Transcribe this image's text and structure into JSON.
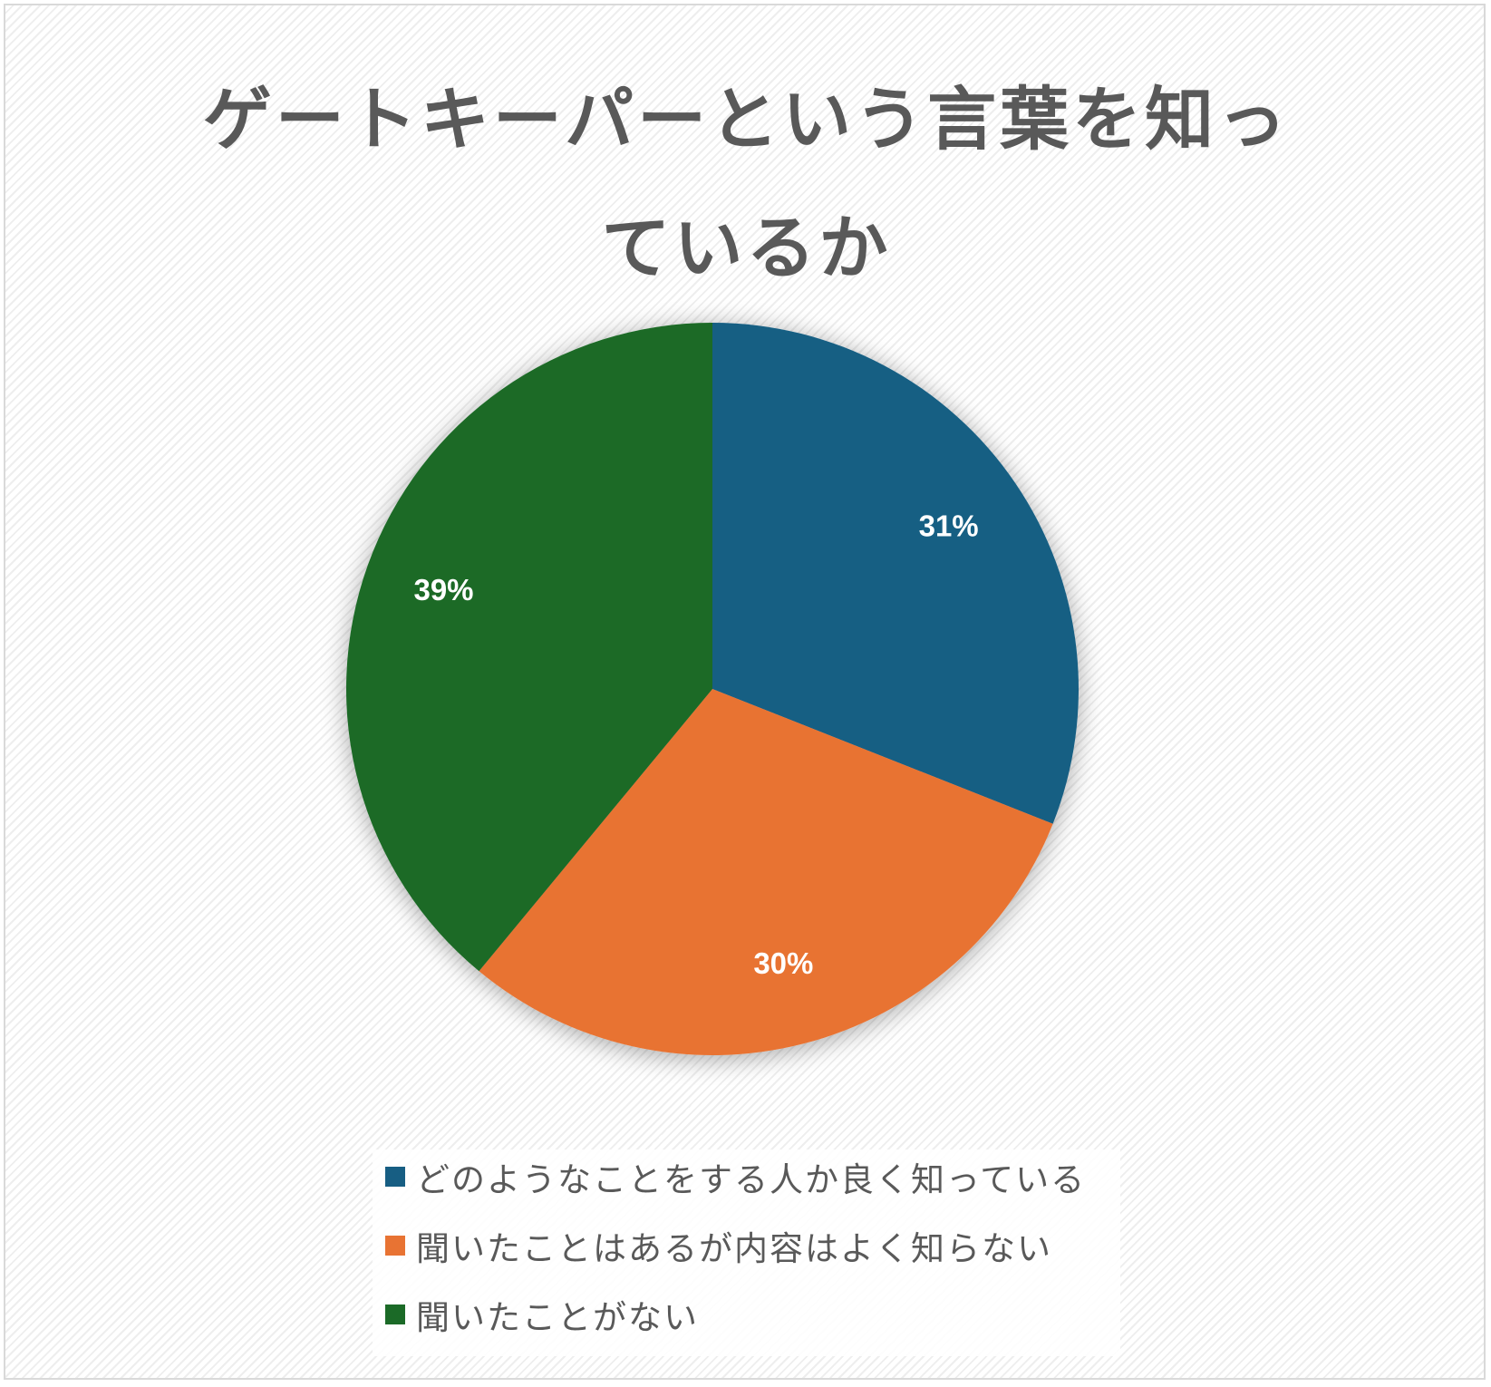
{
  "chart_data": {
    "type": "pie",
    "title": "ゲートキーパーという言葉を知っているか",
    "title_lines": [
      "ゲートキーパーという言葉を知っ",
      "ているか"
    ],
    "categories": [
      "どのようなことをする人か良く知っている",
      "聞いたことはあるが内容はよく知らない",
      "聞いたことがない"
    ],
    "values": [
      31,
      30,
      39
    ],
    "data_labels": [
      "31%",
      "30%",
      "39%"
    ],
    "colors": [
      "#175E83",
      "#E87333",
      "#1B6A27"
    ],
    "start_angle_deg": 0,
    "direction": "clockwise",
    "legend_position": "bottom"
  }
}
